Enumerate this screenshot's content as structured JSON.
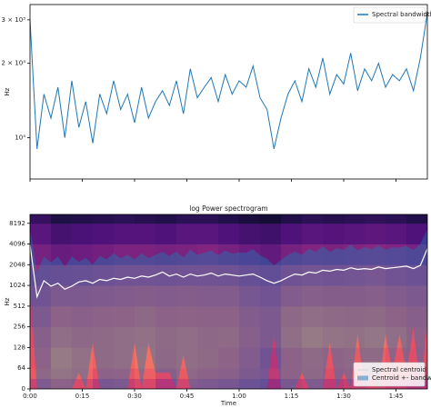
{
  "chart_data": [
    {
      "type": "line",
      "ylabel": "Hz",
      "yscale": "log",
      "x": [
        0,
        2,
        4,
        6,
        8,
        10,
        12,
        14,
        16,
        18,
        20,
        22,
        24,
        26,
        28,
        30,
        32,
        34,
        36,
        38,
        40,
        42,
        44,
        46,
        48,
        50,
        52,
        54,
        56,
        58,
        60,
        62,
        64,
        66,
        68,
        70,
        72,
        74,
        76,
        78,
        80,
        82,
        84,
        86,
        88,
        90,
        92,
        94,
        96,
        98,
        100,
        102,
        104,
        106,
        108,
        110,
        112,
        114
      ],
      "series": [
        {
          "name": "Spectral bandwidth",
          "color": "#1f77b4",
          "values": [
            3000,
            900,
            1500,
            1200,
            1600,
            1000,
            1700,
            1100,
            1400,
            950,
            1500,
            1250,
            1700,
            1300,
            1500,
            1150,
            1600,
            1200,
            1400,
            1550,
            1350,
            1700,
            1250,
            1900,
            1450,
            1600,
            1750,
            1400,
            1800,
            1500,
            1700,
            1600,
            1950,
            1450,
            1300,
            900,
            1200,
            1500,
            1700,
            1400,
            1900,
            1600,
            2100,
            1500,
            1800,
            1650,
            2200,
            1550,
            1900,
            1700,
            2000,
            1600,
            1800,
            1700,
            1900,
            1550,
            2100,
            3200
          ]
        }
      ],
      "xlim": [
        0,
        114
      ],
      "xticks": [
        0,
        15,
        30,
        45,
        60,
        75,
        90,
        105
      ],
      "ylim": [
        680,
        3460
      ],
      "yticks": [
        {
          "value": 1000,
          "label": "10³"
        },
        {
          "value": 2000,
          "label": "2 × 10³"
        },
        {
          "value": 3000,
          "label": "3 × 10³"
        }
      ],
      "legend": "upper right"
    },
    {
      "type": "spectrogram",
      "title": "log Power spectrogram",
      "xlabel": "Time",
      "ylabel": "Hz",
      "yscale": "symlog",
      "linthresh": 64,
      "time_edges": [
        0,
        6,
        12,
        18,
        24,
        30,
        36,
        42,
        48,
        54,
        60,
        66,
        72,
        78,
        84,
        90,
        96,
        102,
        108,
        114
      ],
      "freq_edges": [
        0,
        32,
        64,
        128,
        256,
        512,
        1024,
        2048,
        4096,
        8192,
        11025
      ],
      "z": [
        [
          -35,
          -30,
          -32,
          -38,
          -36,
          -33,
          -40,
          -34,
          -36,
          -38,
          -42,
          -45,
          -37,
          -35,
          -38,
          -36,
          -34,
          -37,
          -40
        ],
        [
          -28,
          -24,
          -26,
          -30,
          -29,
          -27,
          -32,
          -28,
          -30,
          -31,
          -36,
          -38,
          -30,
          -28,
          -31,
          -29,
          -28,
          -30,
          -33
        ],
        [
          -30,
          -22,
          -25,
          -27,
          -26,
          -24,
          -28,
          -26,
          -27,
          -29,
          -34,
          -40,
          -30,
          -27,
          -29,
          -28,
          -27,
          -29,
          -31
        ],
        [
          -32,
          -26,
          -28,
          -27,
          -26,
          -25,
          -27,
          -26,
          -28,
          -27,
          -32,
          -36,
          -26,
          -22,
          -24,
          -25,
          -23,
          -26,
          -30
        ],
        [
          -36,
          -30,
          -31,
          -30,
          -29,
          -28,
          -30,
          -29,
          -30,
          -30,
          -34,
          -36,
          -28,
          -26,
          -27,
          -28,
          -27,
          -29,
          -32
        ],
        [
          -40,
          -36,
          -36,
          -35,
          -34,
          -33,
          -34,
          -33,
          -34,
          -34,
          -38,
          -40,
          -34,
          -32,
          -33,
          -33,
          -32,
          -34,
          -36
        ],
        [
          -45,
          -44,
          -43,
          -42,
          -40,
          -40,
          -41,
          -40,
          -40,
          -41,
          -44,
          -46,
          -41,
          -39,
          -40,
          -39,
          -38,
          -40,
          -42
        ],
        [
          -52,
          -55,
          -54,
          -53,
          -51,
          -51,
          -52,
          -51,
          -50,
          -52,
          -54,
          -56,
          -52,
          -50,
          -51,
          -50,
          -49,
          -50,
          -52
        ],
        [
          -58,
          -62,
          -61,
          -60,
          -59,
          -59,
          -60,
          -58,
          -58,
          -60,
          -62,
          -63,
          -60,
          -58,
          -59,
          -58,
          -57,
          -58,
          -60
        ],
        [
          -65,
          -70,
          -69,
          -68,
          -67,
          -68,
          -69,
          -67,
          -67,
          -69,
          -71,
          -72,
          -69,
          -67,
          -68,
          -67,
          -66,
          -67,
          -69
        ]
      ],
      "zlim": [
        -80,
        0
      ],
      "colormap": [
        "#000004",
        "#1c1044",
        "#4f127b",
        "#812581",
        "#b5367a",
        "#e55064",
        "#fb8761",
        "#fec287",
        "#fcfdbf"
      ],
      "series": [
        {
          "name": "Spectral centroid",
          "color": "#ffffff",
          "values": [
            4000,
            700,
            1200,
            1000,
            1100,
            900,
            1000,
            1150,
            1200,
            1100,
            1250,
            1200,
            1300,
            1250,
            1350,
            1300,
            1400,
            1350,
            1450,
            1600,
            1400,
            1500,
            1350,
            1500,
            1400,
            1450,
            1550,
            1400,
            1500,
            1450,
            1400,
            1450,
            1500,
            1350,
            1200,
            1100,
            1200,
            1350,
            1500,
            1450,
            1600,
            1550,
            1700,
            1650,
            1750,
            1700,
            1850,
            1750,
            1800,
            1750,
            1900,
            1800,
            1850,
            1900,
            1950,
            1800,
            2000,
            3500
          ]
        },
        {
          "name": "Centroid +- bandwidth",
          "color": "#1f77b4",
          "kind": "band"
        }
      ],
      "xlim": [
        0,
        114
      ],
      "xticks": [
        {
          "value": 0,
          "label": "0:00"
        },
        {
          "value": 15,
          "label": "0:15"
        },
        {
          "value": 30,
          "label": "0:30"
        },
        {
          "value": 45,
          "label": "0:45"
        },
        {
          "value": 60,
          "label": "1:00"
        },
        {
          "value": 75,
          "label": "1:15"
        },
        {
          "value": 90,
          "label": "1:30"
        },
        {
          "value": 105,
          "label": "1:45"
        }
      ],
      "ylim": [
        0,
        11025
      ],
      "yticks": [
        0,
        64,
        128,
        256,
        512,
        1024,
        2048,
        4096,
        8192
      ],
      "legend": "lower right"
    }
  ]
}
